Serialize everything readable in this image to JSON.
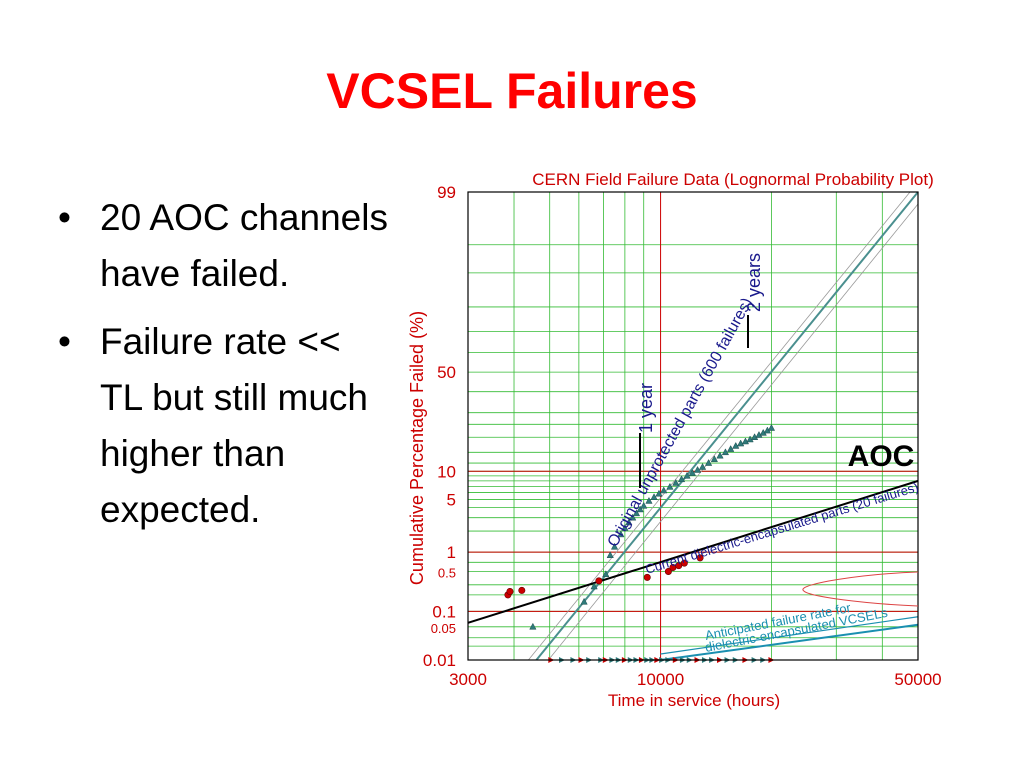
{
  "slide": {
    "title": "VCSEL Failures",
    "bullets": [
      "20 AOC channels have failed.",
      "Failure rate << TL but still much higher than expected."
    ]
  },
  "chart_data": {
    "type": "scatter",
    "title": "CERN Field Failure Data (Lognormal Probability Plot)",
    "xlabel": "Time in service (hours)",
    "ylabel": "Cumulative Percentage Failed (%)",
    "x_scale": "log",
    "y_scale": "lognormal-probability",
    "xlim": [
      3000,
      50000
    ],
    "ylim": [
      0.01,
      99
    ],
    "x_tick_labels": [
      "3000",
      "10000",
      "50000"
    ],
    "y_tick_labels": [
      "99",
      "50",
      "10",
      "5",
      "1",
      "0.5",
      "0.1",
      "0.05",
      "0.01"
    ],
    "grid": true,
    "annotations": {
      "aoc_label": "AOC",
      "one_year": "1 year",
      "two_years": "2 years",
      "original_parts": "Original unprotected parts (600 failures)",
      "current_parts": "Current dielectric-encapsulated parts (20 failures)",
      "anticipated_line1": "Anticipated failure rate for",
      "anticipated_line2": "dielectric-encapsulated VCSELs"
    },
    "vertical_markers": [
      {
        "label": "1 year",
        "x": 8760
      },
      {
        "label": "2 years",
        "x": 17520
      }
    ],
    "series": [
      {
        "name": "Original unprotected parts (600 failures)",
        "marker": "triangle",
        "color": "#2f7a7a",
        "points": [
          [
            4500,
            0.05
          ],
          [
            6200,
            0.15
          ],
          [
            6600,
            0.28
          ],
          [
            7100,
            0.45
          ],
          [
            7300,
            0.9
          ],
          [
            7500,
            1.2
          ],
          [
            7800,
            1.8
          ],
          [
            8000,
            2.2
          ],
          [
            8200,
            2.6
          ],
          [
            8400,
            3.0
          ],
          [
            8600,
            3.4
          ],
          [
            8800,
            3.8
          ],
          [
            9000,
            4.2
          ],
          [
            9300,
            4.8
          ],
          [
            9600,
            5.3
          ],
          [
            9900,
            5.8
          ],
          [
            10200,
            6.3
          ],
          [
            10600,
            6.9
          ],
          [
            11000,
            7.6
          ],
          [
            11400,
            8.3
          ],
          [
            11800,
            9.0
          ],
          [
            12200,
            9.6
          ],
          [
            12600,
            10.3
          ],
          [
            13000,
            11.0
          ],
          [
            13500,
            12.0
          ],
          [
            14000,
            13.0
          ],
          [
            14500,
            14.0
          ],
          [
            15000,
            15.0
          ],
          [
            15500,
            16.0
          ],
          [
            16000,
            17.0
          ],
          [
            16500,
            17.8
          ],
          [
            17000,
            18.5
          ],
          [
            17500,
            19.2
          ],
          [
            18000,
            20.0
          ],
          [
            18500,
            20.8
          ],
          [
            19000,
            21.6
          ],
          [
            19500,
            22.5
          ],
          [
            20000,
            23.5
          ]
        ]
      },
      {
        "name": "Current dielectric-encapsulated parts (20 failures)",
        "marker": "circle",
        "color": "#cc0000",
        "points": [
          [
            3850,
            0.2
          ],
          [
            3900,
            0.23
          ],
          [
            4200,
            0.24
          ],
          [
            6800,
            0.35
          ],
          [
            9200,
            0.4
          ],
          [
            10500,
            0.5
          ],
          [
            10800,
            0.58
          ],
          [
            11200,
            0.62
          ],
          [
            11600,
            0.68
          ],
          [
            12800,
            0.82
          ]
        ]
      }
    ],
    "fit_lines": [
      {
        "name": "Original unprotected parts (600 failures)",
        "from": [
          4600,
          0.01
        ],
        "to": [
          50000,
          99
        ],
        "color": "#4a8f8f"
      },
      {
        "name": "Current dielectric-encapsulated parts (20 failures)",
        "from": [
          3000,
          0.06
        ],
        "to": [
          50000,
          8
        ],
        "color": "#000000"
      },
      {
        "name": "Anticipated failure rate for dielectric-encapsulated VCSELs",
        "from": [
          10000,
          0.01
        ],
        "to": [
          50000,
          0.055
        ],
        "color": "#1a8fb0"
      }
    ]
  },
  "colors": {
    "title": "#ff0000",
    "axis_text": "#cc0000",
    "grid_major": "#cc0000",
    "grid_minor": "#33bb33",
    "annotation_navy": "#1a1a8c",
    "anticipated": "#1a8fb0"
  }
}
